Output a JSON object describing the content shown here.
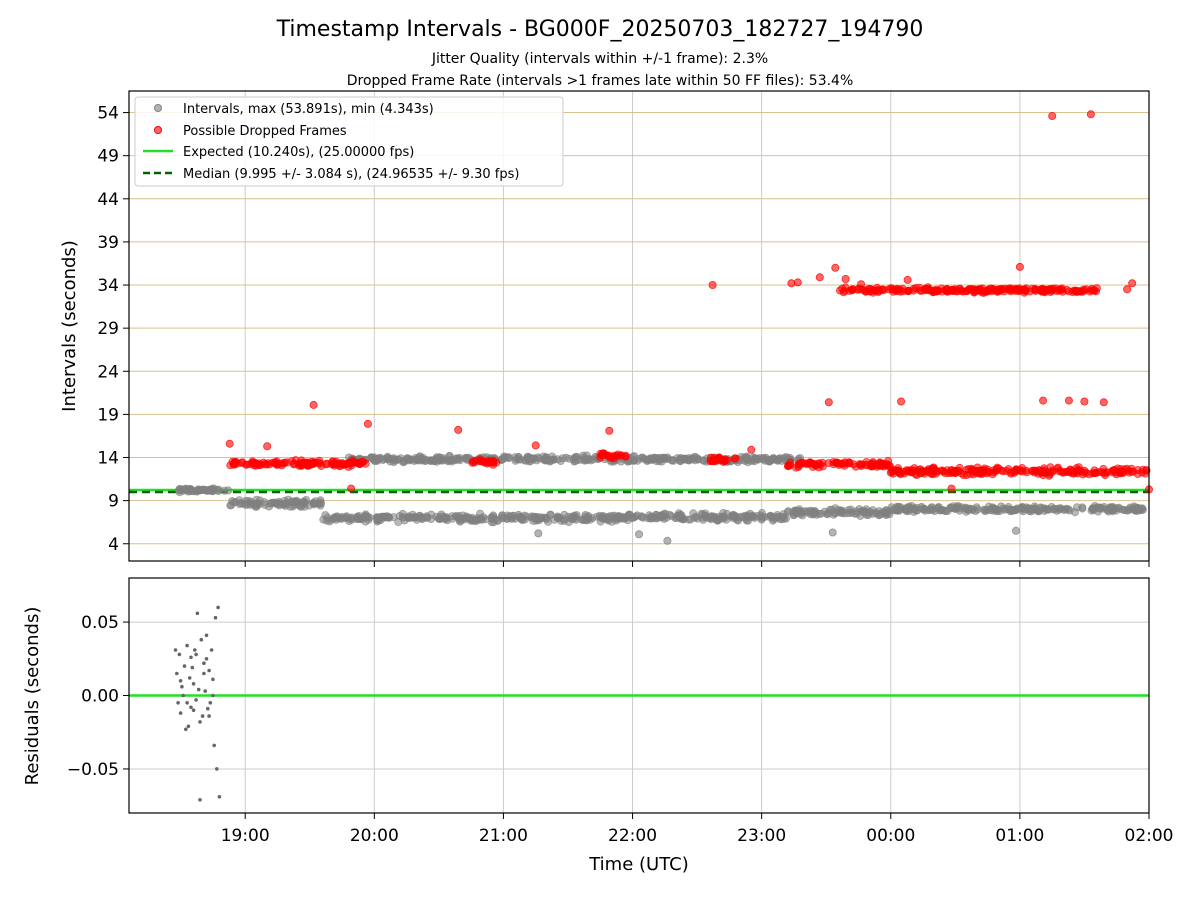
{
  "chart_data": [
    {
      "type": "scatter",
      "title": "Timestamp Intervals - BG000F_20250703_182727_194790",
      "subtitle_lines": [
        "Jitter Quality (intervals within +/-1 frame): 2.3%",
        "Dropped Frame Rate (intervals >1 frames late within 50 FF files): 53.4%"
      ],
      "xlabel": "",
      "ylabel": "Intervals (seconds)",
      "xlim_hours": [
        18.1,
        26.0
      ],
      "ylim": [
        2,
        56.5
      ],
      "yticks": [
        4,
        9,
        14,
        19,
        24,
        29,
        34,
        39,
        44,
        49,
        54
      ],
      "ytick_labels": [
        "4",
        "9",
        "14",
        "19",
        "24",
        "29",
        "34",
        "39",
        "44",
        "49",
        "54"
      ],
      "y_grid_color": "#d9c38c",
      "x_grid_color": "#cccccc",
      "legend_position": "top-left",
      "legend": [
        "Intervals, max (53.891s), min (4.343s)",
        "Possible Dropped Frames",
        "Expected (10.240s), (25.00000 fps)",
        "Median (9.995 +/- 3.084 s), (24.96535 +/- 9.30 fps)"
      ],
      "colors": {
        "intervals": "#808080",
        "dropped": "#ff0000",
        "expected": "#22e022",
        "median": "#006400"
      },
      "expected_interval": 10.24,
      "median_interval": 9.995,
      "intervals_max": 53.891,
      "intervals_min": 4.343,
      "series": [
        {
          "name": "Intervals, max (53.891s), min (4.343s)",
          "segments": [
            {
              "x_start": 18.45,
              "x_end": 18.88,
              "level": 10.2,
              "spread": 0.3
            },
            {
              "x_start": 18.88,
              "x_end": 19.6,
              "level": 8.7,
              "spread": 0.6
            },
            {
              "x_start": 19.6,
              "x_end": 22.05,
              "level": 7.0,
              "spread": 0.6
            },
            {
              "x_start": 22.05,
              "x_end": 23.2,
              "level": 7.1,
              "spread": 0.6
            },
            {
              "x_start": 23.2,
              "x_end": 24.0,
              "level": 7.6,
              "spread": 0.6
            },
            {
              "x_start": 24.0,
              "x_end": 26.0,
              "level": 8.0,
              "spread": 0.5
            },
            {
              "x_start": 19.8,
              "x_end": 23.3,
              "level": 13.8,
              "spread": 0.5
            }
          ],
          "outliers": [
            [
              21.27,
              5.2
            ],
            [
              22.05,
              5.1
            ],
            [
              22.27,
              4.34
            ],
            [
              23.55,
              5.3
            ],
            [
              24.97,
              5.5
            ]
          ]
        },
        {
          "name": "Possible Dropped Frames",
          "segments": [
            {
              "x_start": 18.88,
              "x_end": 19.95,
              "level": 13.3,
              "spread": 0.5
            },
            {
              "x_start": 20.75,
              "x_end": 20.95,
              "level": 13.5,
              "spread": 0.4
            },
            {
              "x_start": 21.75,
              "x_end": 21.95,
              "level": 14.2,
              "spread": 0.6
            },
            {
              "x_start": 22.6,
              "x_end": 22.8,
              "level": 13.8,
              "spread": 0.5
            },
            {
              "x_start": 23.2,
              "x_end": 24.0,
              "level": 13.2,
              "spread": 0.5
            },
            {
              "x_start": 24.0,
              "x_end": 26.0,
              "level": 12.4,
              "spread": 0.6
            },
            {
              "x_start": 23.6,
              "x_end": 25.6,
              "level": 33.4,
              "spread": 0.4
            }
          ],
          "outliers": [
            [
              18.88,
              15.6
            ],
            [
              19.17,
              15.3
            ],
            [
              19.53,
              20.1
            ],
            [
              19.95,
              17.9
            ],
            [
              20.65,
              17.2
            ],
            [
              21.25,
              15.4
            ],
            [
              21.82,
              17.1
            ],
            [
              22.62,
              34.0
            ],
            [
              22.92,
              14.9
            ],
            [
              23.23,
              34.2
            ],
            [
              23.28,
              34.3
            ],
            [
              23.45,
              34.9
            ],
            [
              23.52,
              20.4
            ],
            [
              23.57,
              36.0
            ],
            [
              23.65,
              34.7
            ],
            [
              23.77,
              34.1
            ],
            [
              24.08,
              20.5
            ],
            [
              24.13,
              34.6
            ],
            [
              25.0,
              36.1
            ],
            [
              25.18,
              20.6
            ],
            [
              25.25,
              53.6
            ],
            [
              25.38,
              20.6
            ],
            [
              25.5,
              20.5
            ],
            [
              25.55,
              53.8
            ],
            [
              25.65,
              20.4
            ],
            [
              25.87,
              34.2
            ],
            [
              25.83,
              33.5
            ],
            [
              19.82,
              10.4
            ],
            [
              24.47,
              10.4
            ],
            [
              26.0,
              10.3
            ]
          ]
        }
      ]
    },
    {
      "type": "scatter",
      "title": "",
      "xlabel": "Time (UTC)",
      "ylabel": "Residuals (seconds)",
      "xlim_hours": [
        18.1,
        26.0
      ],
      "ylim": [
        -0.08,
        0.08
      ],
      "yticks": [
        -0.05,
        0.0,
        0.05
      ],
      "ytick_labels": [
        "−0.05",
        "0.00",
        "0.05"
      ],
      "xticks_hours": [
        19,
        20,
        21,
        22,
        23,
        24,
        25,
        26
      ],
      "xtick_labels": [
        "19:00",
        "20:00",
        "21:00",
        "22:00",
        "23:00",
        "00:00",
        "01:00",
        "02:00"
      ],
      "zero_line_color": "#22e022",
      "series": [
        {
          "name": "",
          "x_start": 18.45,
          "x_end": 18.8,
          "points": [
            [
              18.46,
              0.031
            ],
            [
              18.47,
              0.015
            ],
            [
              18.48,
              -0.005
            ],
            [
              18.49,
              0.028
            ],
            [
              18.5,
              -0.012
            ],
            [
              18.51,
              0.006
            ],
            [
              18.52,
              0.0
            ],
            [
              18.53,
              0.02
            ],
            [
              18.54,
              -0.023
            ],
            [
              18.55,
              0.034
            ],
            [
              18.56,
              -0.021
            ],
            [
              18.57,
              0.012
            ],
            [
              18.58,
              0.026
            ],
            [
              18.59,
              0.019
            ],
            [
              18.6,
              -0.01
            ],
            [
              18.61,
              0.031
            ],
            [
              18.62,
              -0.003
            ],
            [
              18.63,
              0.056
            ],
            [
              18.64,
              0.004
            ],
            [
              18.65,
              -0.071
            ],
            [
              18.66,
              0.038
            ],
            [
              18.67,
              -0.014
            ],
            [
              18.68,
              0.022
            ],
            [
              18.69,
              0.003
            ],
            [
              18.7,
              0.041
            ],
            [
              18.71,
              -0.009
            ],
            [
              18.72,
              0.017
            ],
            [
              18.73,
              -0.005
            ],
            [
              18.74,
              0.031
            ],
            [
              18.75,
              0.011
            ],
            [
              18.76,
              -0.034
            ],
            [
              18.77,
              0.053
            ],
            [
              18.78,
              -0.05
            ],
            [
              18.79,
              0.06
            ],
            [
              18.8,
              -0.069
            ],
            [
              18.5,
              0.01
            ],
            [
              18.55,
              -0.005
            ],
            [
              18.6,
              0.008
            ],
            [
              18.65,
              -0.018
            ],
            [
              18.7,
              0.025
            ],
            [
              18.75,
              0.0
            ],
            [
              18.68,
              0.015
            ],
            [
              18.72,
              -0.014
            ],
            [
              18.62,
              0.028
            ],
            [
              18.58,
              -0.008
            ]
          ]
        }
      ]
    }
  ]
}
